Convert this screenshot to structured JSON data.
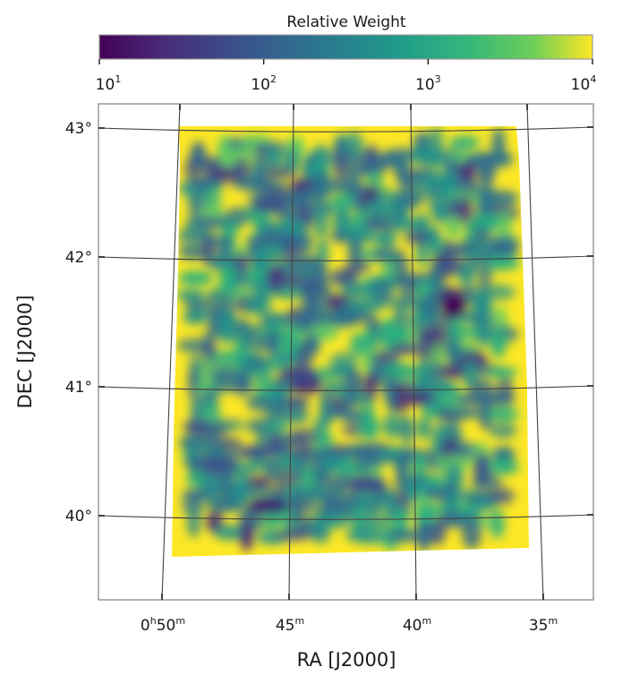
{
  "chart_data": {
    "type": "heatmap",
    "xlabel": "RA [J2000]",
    "ylabel": "DEC [J2000]",
    "colorbar": {
      "label": "Relative Weight",
      "scale": "log",
      "range": [
        10,
        10000
      ],
      "colormap": "viridis",
      "ticks": [
        {
          "base": "10",
          "exp": "1"
        },
        {
          "base": "10",
          "exp": "2"
        },
        {
          "base": "10",
          "exp": "3"
        },
        {
          "base": "10",
          "exp": "4"
        }
      ]
    },
    "x_ticks": [
      {
        "h": "0",
        "hunit": "h",
        "m": "50",
        "munit": "m"
      },
      {
        "h": "",
        "hunit": "",
        "m": "45",
        "munit": "m"
      },
      {
        "h": "",
        "hunit": "",
        "m": "40",
        "munit": "m"
      },
      {
        "h": "",
        "hunit": "",
        "m": "35",
        "munit": "m"
      }
    ],
    "y_ticks": [
      "43°",
      "42°",
      "41°",
      "40°"
    ],
    "ra_range_min": [
      52.8,
      33.0
    ],
    "dec_range_deg": [
      39.35,
      43.2
    ],
    "grid": true,
    "coverage_region": {
      "ra_min": [
        36.0,
        49.4
      ],
      "dec_deg": [
        39.7,
        43.0
      ]
    },
    "edge_weight": 10000,
    "colors": {
      "background": "#fde725",
      "frame": "#999999",
      "grid": "#444444"
    }
  }
}
